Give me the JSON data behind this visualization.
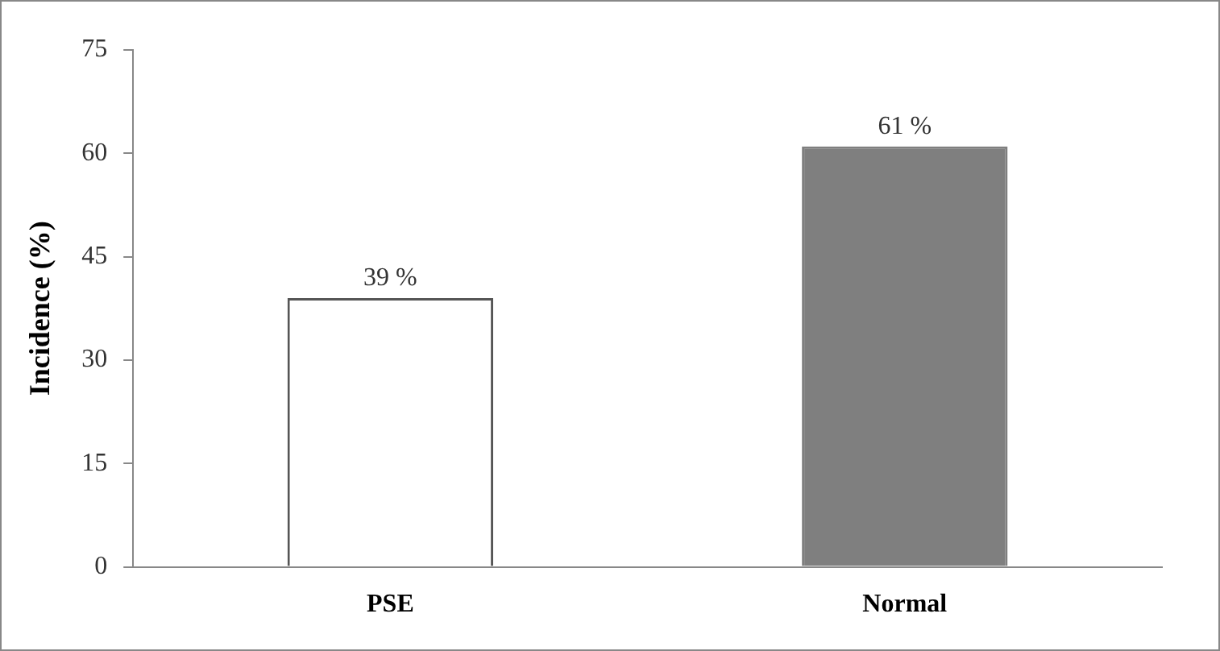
{
  "chart_data": {
    "type": "bar",
    "ylabel": "Incidence (%)",
    "categories": [
      "PSE",
      "Normal"
    ],
    "values": [
      39,
      61
    ],
    "colors": [
      "#ffffff",
      "#7f7f7f"
    ],
    "value_labels": [
      "39 %",
      "61 %"
    ],
    "ylim": [
      0,
      75
    ],
    "yticks": [
      0,
      15,
      30,
      45,
      60,
      75
    ],
    "grid": false,
    "legend": false
  }
}
